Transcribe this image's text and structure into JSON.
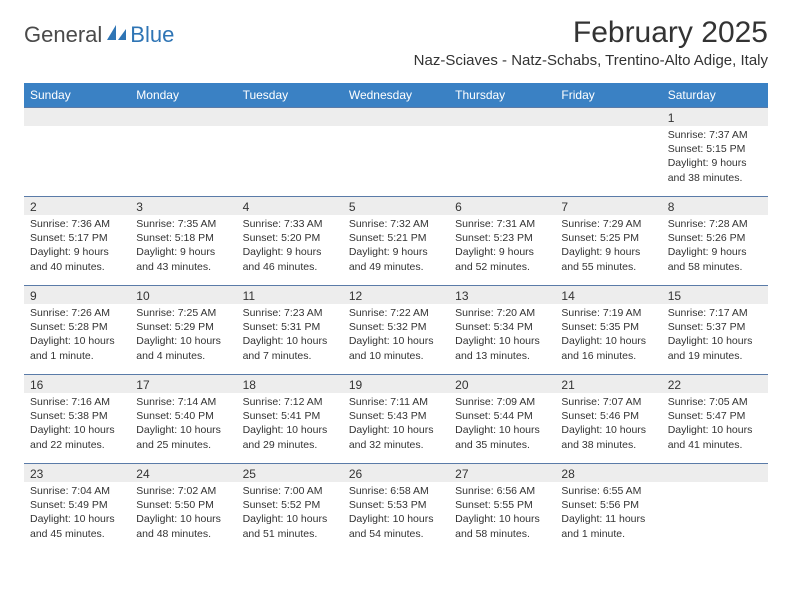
{
  "brand": {
    "part1": "General",
    "part2": "Blue"
  },
  "title": "February 2025",
  "location": "Naz-Sciaves - Natz-Schabs, Trentino-Alto Adige, Italy",
  "colors": {
    "header_bg": "#3a81c4",
    "header_text": "#ffffff",
    "row_border": "#5a7ba8",
    "daynum_bg": "#ededed",
    "text": "#333333",
    "brand_blue": "#2f75b5",
    "brand_gray": "#4a4a4a",
    "page_bg": "#ffffff"
  },
  "day_names": [
    "Sunday",
    "Monday",
    "Tuesday",
    "Wednesday",
    "Thursday",
    "Friday",
    "Saturday"
  ],
  "weeks": [
    [
      {
        "n": "",
        "sr": "",
        "ss": "",
        "dl": ""
      },
      {
        "n": "",
        "sr": "",
        "ss": "",
        "dl": ""
      },
      {
        "n": "",
        "sr": "",
        "ss": "",
        "dl": ""
      },
      {
        "n": "",
        "sr": "",
        "ss": "",
        "dl": ""
      },
      {
        "n": "",
        "sr": "",
        "ss": "",
        "dl": ""
      },
      {
        "n": "",
        "sr": "",
        "ss": "",
        "dl": ""
      },
      {
        "n": "1",
        "sr": "Sunrise: 7:37 AM",
        "ss": "Sunset: 5:15 PM",
        "dl": "Daylight: 9 hours and 38 minutes."
      }
    ],
    [
      {
        "n": "2",
        "sr": "Sunrise: 7:36 AM",
        "ss": "Sunset: 5:17 PM",
        "dl": "Daylight: 9 hours and 40 minutes."
      },
      {
        "n": "3",
        "sr": "Sunrise: 7:35 AM",
        "ss": "Sunset: 5:18 PM",
        "dl": "Daylight: 9 hours and 43 minutes."
      },
      {
        "n": "4",
        "sr": "Sunrise: 7:33 AM",
        "ss": "Sunset: 5:20 PM",
        "dl": "Daylight: 9 hours and 46 minutes."
      },
      {
        "n": "5",
        "sr": "Sunrise: 7:32 AM",
        "ss": "Sunset: 5:21 PM",
        "dl": "Daylight: 9 hours and 49 minutes."
      },
      {
        "n": "6",
        "sr": "Sunrise: 7:31 AM",
        "ss": "Sunset: 5:23 PM",
        "dl": "Daylight: 9 hours and 52 minutes."
      },
      {
        "n": "7",
        "sr": "Sunrise: 7:29 AM",
        "ss": "Sunset: 5:25 PM",
        "dl": "Daylight: 9 hours and 55 minutes."
      },
      {
        "n": "8",
        "sr": "Sunrise: 7:28 AM",
        "ss": "Sunset: 5:26 PM",
        "dl": "Daylight: 9 hours and 58 minutes."
      }
    ],
    [
      {
        "n": "9",
        "sr": "Sunrise: 7:26 AM",
        "ss": "Sunset: 5:28 PM",
        "dl": "Daylight: 10 hours and 1 minute."
      },
      {
        "n": "10",
        "sr": "Sunrise: 7:25 AM",
        "ss": "Sunset: 5:29 PM",
        "dl": "Daylight: 10 hours and 4 minutes."
      },
      {
        "n": "11",
        "sr": "Sunrise: 7:23 AM",
        "ss": "Sunset: 5:31 PM",
        "dl": "Daylight: 10 hours and 7 minutes."
      },
      {
        "n": "12",
        "sr": "Sunrise: 7:22 AM",
        "ss": "Sunset: 5:32 PM",
        "dl": "Daylight: 10 hours and 10 minutes."
      },
      {
        "n": "13",
        "sr": "Sunrise: 7:20 AM",
        "ss": "Sunset: 5:34 PM",
        "dl": "Daylight: 10 hours and 13 minutes."
      },
      {
        "n": "14",
        "sr": "Sunrise: 7:19 AM",
        "ss": "Sunset: 5:35 PM",
        "dl": "Daylight: 10 hours and 16 minutes."
      },
      {
        "n": "15",
        "sr": "Sunrise: 7:17 AM",
        "ss": "Sunset: 5:37 PM",
        "dl": "Daylight: 10 hours and 19 minutes."
      }
    ],
    [
      {
        "n": "16",
        "sr": "Sunrise: 7:16 AM",
        "ss": "Sunset: 5:38 PM",
        "dl": "Daylight: 10 hours and 22 minutes."
      },
      {
        "n": "17",
        "sr": "Sunrise: 7:14 AM",
        "ss": "Sunset: 5:40 PM",
        "dl": "Daylight: 10 hours and 25 minutes."
      },
      {
        "n": "18",
        "sr": "Sunrise: 7:12 AM",
        "ss": "Sunset: 5:41 PM",
        "dl": "Daylight: 10 hours and 29 minutes."
      },
      {
        "n": "19",
        "sr": "Sunrise: 7:11 AM",
        "ss": "Sunset: 5:43 PM",
        "dl": "Daylight: 10 hours and 32 minutes."
      },
      {
        "n": "20",
        "sr": "Sunrise: 7:09 AM",
        "ss": "Sunset: 5:44 PM",
        "dl": "Daylight: 10 hours and 35 minutes."
      },
      {
        "n": "21",
        "sr": "Sunrise: 7:07 AM",
        "ss": "Sunset: 5:46 PM",
        "dl": "Daylight: 10 hours and 38 minutes."
      },
      {
        "n": "22",
        "sr": "Sunrise: 7:05 AM",
        "ss": "Sunset: 5:47 PM",
        "dl": "Daylight: 10 hours and 41 minutes."
      }
    ],
    [
      {
        "n": "23",
        "sr": "Sunrise: 7:04 AM",
        "ss": "Sunset: 5:49 PM",
        "dl": "Daylight: 10 hours and 45 minutes."
      },
      {
        "n": "24",
        "sr": "Sunrise: 7:02 AM",
        "ss": "Sunset: 5:50 PM",
        "dl": "Daylight: 10 hours and 48 minutes."
      },
      {
        "n": "25",
        "sr": "Sunrise: 7:00 AM",
        "ss": "Sunset: 5:52 PM",
        "dl": "Daylight: 10 hours and 51 minutes."
      },
      {
        "n": "26",
        "sr": "Sunrise: 6:58 AM",
        "ss": "Sunset: 5:53 PM",
        "dl": "Daylight: 10 hours and 54 minutes."
      },
      {
        "n": "27",
        "sr": "Sunrise: 6:56 AM",
        "ss": "Sunset: 5:55 PM",
        "dl": "Daylight: 10 hours and 58 minutes."
      },
      {
        "n": "28",
        "sr": "Sunrise: 6:55 AM",
        "ss": "Sunset: 5:56 PM",
        "dl": "Daylight: 11 hours and 1 minute."
      },
      {
        "n": "",
        "sr": "",
        "ss": "",
        "dl": ""
      }
    ]
  ]
}
